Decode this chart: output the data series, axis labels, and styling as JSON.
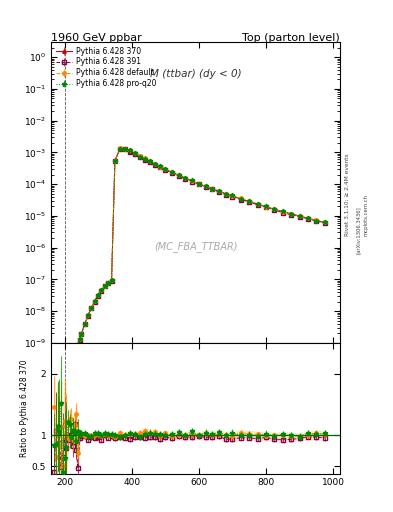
{
  "title_left": "1960 GeV ppbar",
  "title_right": "Top (parton level)",
  "plot_title_display": "M (ttbar) (dy < 0)",
  "ylabel_ratio": "Ratio to Pythia 6.428 370",
  "watermark": "(MC_FBA_TTBAR)",
  "arxiv": "[arXiv:1306.3436]",
  "right_label1": "Rivet 3.1.10; ≥ 2.4M events",
  "right_label2": "mcplots.cern.ch",
  "legend_entries": [
    {
      "label": "Pythia 6.428 370",
      "color": "#cc0000",
      "mfc": "#cc0000",
      "marker": "^",
      "linestyle": "-",
      "ms": 2.5
    },
    {
      "label": "Pythia 6.428 391",
      "color": "#880044",
      "mfc": "none",
      "marker": "s",
      "linestyle": "--",
      "ms": 2.5
    },
    {
      "label": "Pythia 6.428 default",
      "color": "#ff8800",
      "mfc": "#ff8800",
      "marker": "o",
      "linestyle": "--",
      "ms": 2.5
    },
    {
      "label": "Pythia 6.428 pro-q20",
      "color": "#008800",
      "mfc": "#008800",
      "marker": "*",
      "linestyle": ":",
      "ms": 3.5
    }
  ],
  "band_colors": [
    "#ffcccc",
    "#ffcc88",
    "#ccffcc"
  ],
  "background_color": "#ffffff",
  "fig_width": 3.93,
  "fig_height": 5.12,
  "dpi": 100
}
